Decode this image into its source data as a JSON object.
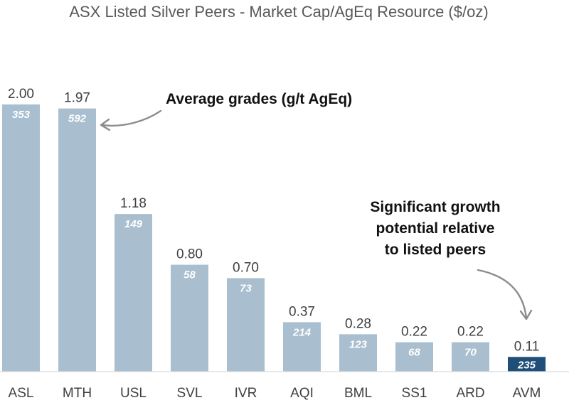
{
  "chart_data": {
    "type": "bar",
    "title": "ASX Listed Silver Peers - Market Cap/AgEq Resource ($/oz)",
    "categories": [
      "ASL",
      "MTH",
      "USL",
      "SVL",
      "IVR",
      "AQI",
      "BML",
      "SS1",
      "ARD",
      "AVM"
    ],
    "values": [
      2.0,
      1.97,
      1.18,
      0.8,
      0.7,
      0.37,
      0.28,
      0.22,
      0.22,
      0.11
    ],
    "value_labels": [
      "2.00",
      "1.97",
      "1.18",
      "0.80",
      "0.70",
      "0.37",
      "0.28",
      "0.22",
      "0.22",
      "0.11"
    ],
    "grades": [
      "353",
      "592",
      "149",
      "58",
      "73",
      "214",
      "123",
      "68",
      "70",
      "235"
    ],
    "highlight_category": "AVM",
    "ylim": [
      0,
      2.2
    ],
    "xlabel": "",
    "ylabel": "",
    "grid": false
  },
  "annotations": {
    "grades_note": "Average grades (g/t AgEq)",
    "growth_note": [
      "Significant growth",
      "potential relative",
      "to listed peers"
    ]
  },
  "colors": {
    "bar": "#a9bfcf",
    "highlight_bar": "#1f4e79",
    "bar_text": "#ffffff",
    "axis": "#d9d9d9"
  }
}
